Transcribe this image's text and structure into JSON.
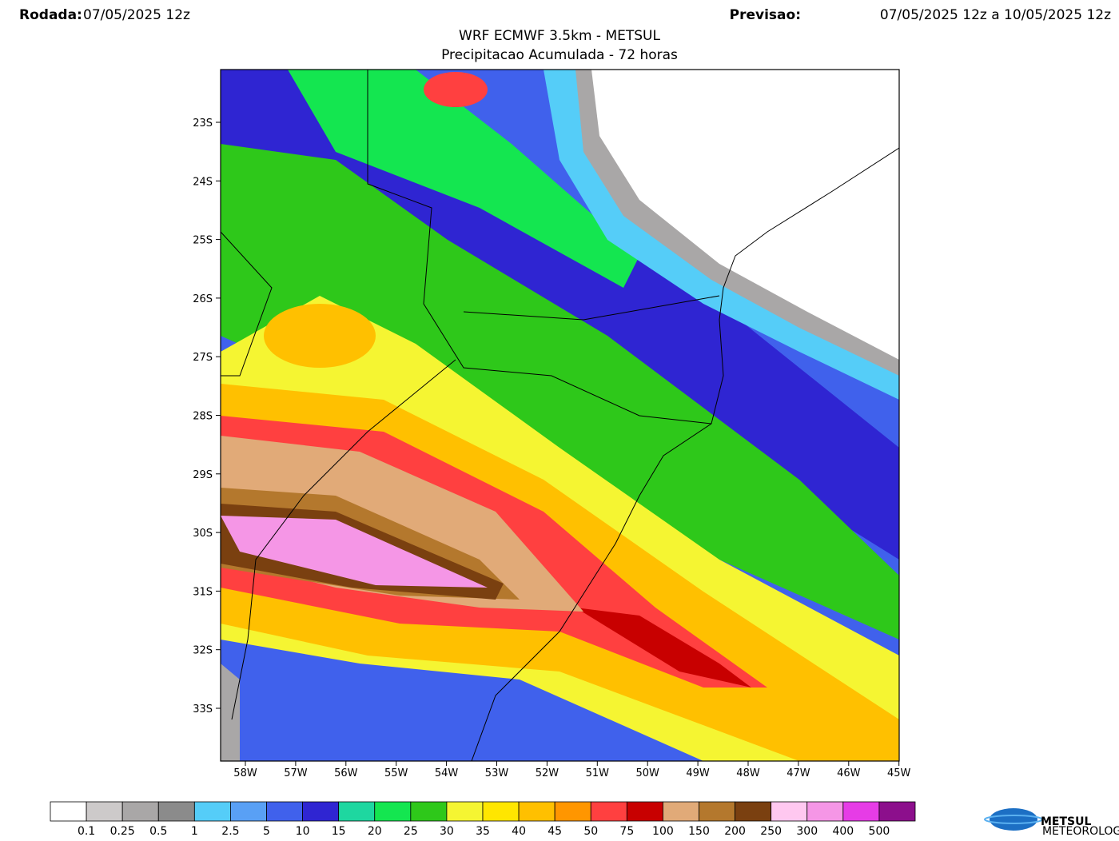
{
  "header": {
    "run_label": "Rodada:",
    "run_value": "07/05/2025 12z",
    "forecast_label": "Previsao:",
    "forecast_value": "07/05/2025 12z a 10/05/2025 12z",
    "title": "WRF ECMWF 3.5km - METSUL",
    "subtitle": "Precipitacao Acumulada - 72 horas"
  },
  "map": {
    "lat_labels": [
      "23S",
      "24S",
      "25S",
      "26S",
      "27S",
      "28S",
      "29S",
      "30S",
      "31S",
      "32S",
      "33S"
    ],
    "lon_labels": [
      "58W",
      "57W",
      "56W",
      "55W",
      "54W",
      "53W",
      "52W",
      "51W",
      "50W",
      "49W",
      "48W",
      "47W",
      "46W",
      "45W"
    ]
  },
  "colorbar": {
    "colors": [
      "#ffffff",
      "#cdcaca",
      "#a9a7a7",
      "#8b8b8b",
      "#55cdf8",
      "#59a0f5",
      "#4061ec",
      "#2f25d2",
      "#1ed7a0",
      "#14e650",
      "#2ec81a",
      "#f5f532",
      "#ffe600",
      "#ffc000",
      "#ff9600",
      "#ff4040",
      "#c80000",
      "#e1aa78",
      "#b4782d",
      "#7a4010",
      "#ffc8f0",
      "#f596e6",
      "#e63ce6",
      "#8c0f8c"
    ],
    "labels": [
      "0.1",
      "0.25",
      "0.5",
      "1",
      "2.5",
      "5",
      "10",
      "15",
      "20",
      "25",
      "30",
      "35",
      "40",
      "45",
      "50",
      "75",
      "100",
      "150",
      "200",
      "250",
      "300",
      "400",
      "500"
    ]
  },
  "logo": {
    "name": "METSUL",
    "tagline": "METEOROLOGIA"
  }
}
